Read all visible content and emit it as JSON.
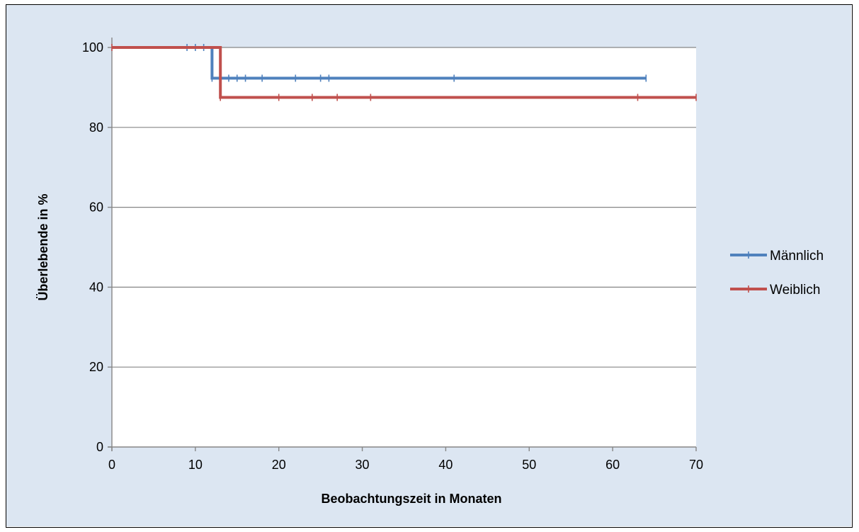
{
  "colors": {
    "chart_background": "#dce6f2",
    "plot_background": "#ffffff",
    "gridline": "#868686",
    "axis": "#868686"
  },
  "chart_data": {
    "type": "line",
    "step": true,
    "xlabel": "Beobachtungszeit in Monaten",
    "ylabel": "Überlebende in %",
    "xlim": [
      0,
      70
    ],
    "ylim": [
      0,
      100
    ],
    "x_ticks": [
      0,
      10,
      20,
      30,
      40,
      50,
      60,
      70
    ],
    "y_ticks": [
      0,
      20,
      40,
      60,
      80,
      100
    ],
    "grid": "horizontal",
    "legend_position": "right",
    "series": [
      {
        "name": "Männlich",
        "color": "#4f81bd",
        "steps": [
          [
            0,
            100
          ],
          [
            12,
            100
          ],
          [
            12,
            92.3
          ],
          [
            64,
            92.3
          ]
        ],
        "censored": [
          [
            9,
            100
          ],
          [
            10,
            100
          ],
          [
            11,
            100
          ],
          [
            12,
            92.3
          ],
          [
            13,
            92.3
          ],
          [
            14,
            92.3
          ],
          [
            15,
            92.3
          ],
          [
            16,
            92.3
          ],
          [
            18,
            92.3
          ],
          [
            22,
            92.3
          ],
          [
            25,
            92.3
          ],
          [
            26,
            92.3
          ],
          [
            41,
            92.3
          ],
          [
            64,
            92.3
          ]
        ]
      },
      {
        "name": "Weiblich",
        "color": "#c0504d",
        "steps": [
          [
            0,
            100
          ],
          [
            13,
            100
          ],
          [
            13,
            87.5
          ],
          [
            70,
            87.5
          ]
        ],
        "censored": [
          [
            0,
            100
          ],
          [
            13,
            87.5
          ],
          [
            20,
            87.5
          ],
          [
            24,
            87.5
          ],
          [
            27,
            87.5
          ],
          [
            31,
            87.5
          ],
          [
            63,
            87.5
          ],
          [
            70,
            87.5
          ]
        ]
      }
    ]
  }
}
